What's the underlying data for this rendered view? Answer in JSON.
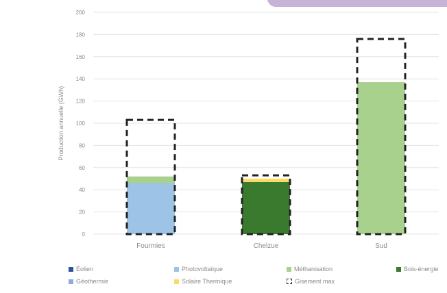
{
  "chart_data": {
    "type": "bar",
    "stacked": true,
    "title": "",
    "xlabel": "",
    "ylabel": "Production annuelle (GWh)",
    "ylim": [
      0,
      200
    ],
    "yticks": [
      0,
      20,
      40,
      60,
      80,
      100,
      120,
      140,
      160,
      180,
      200
    ],
    "grid": true,
    "legend_position": "bottom",
    "categories": [
      "Fourmies",
      "Chelzue",
      "Sud"
    ],
    "series": [
      {
        "name": "Éolien",
        "color": "#2f5597",
        "values": [
          0,
          0,
          0
        ]
      },
      {
        "name": "Photovoltaïque",
        "color": "#9dc3e6",
        "values": [
          46,
          0,
          0
        ]
      },
      {
        "name": "Méthanisation",
        "color": "#a9d18e",
        "values": [
          6,
          0,
          137
        ]
      },
      {
        "name": "Bois-énergie",
        "color": "#3a7a2e",
        "values": [
          0,
          47,
          0
        ]
      },
      {
        "name": "Géothermie",
        "color": "#8faadc",
        "values": [
          0,
          0,
          0
        ]
      },
      {
        "name": "Solaire Thermique",
        "color": "#ffd966",
        "values": [
          0,
          3,
          0
        ]
      }
    ],
    "potential": {
      "name": "Gisement max",
      "values": [
        103,
        53,
        176
      ]
    }
  }
}
